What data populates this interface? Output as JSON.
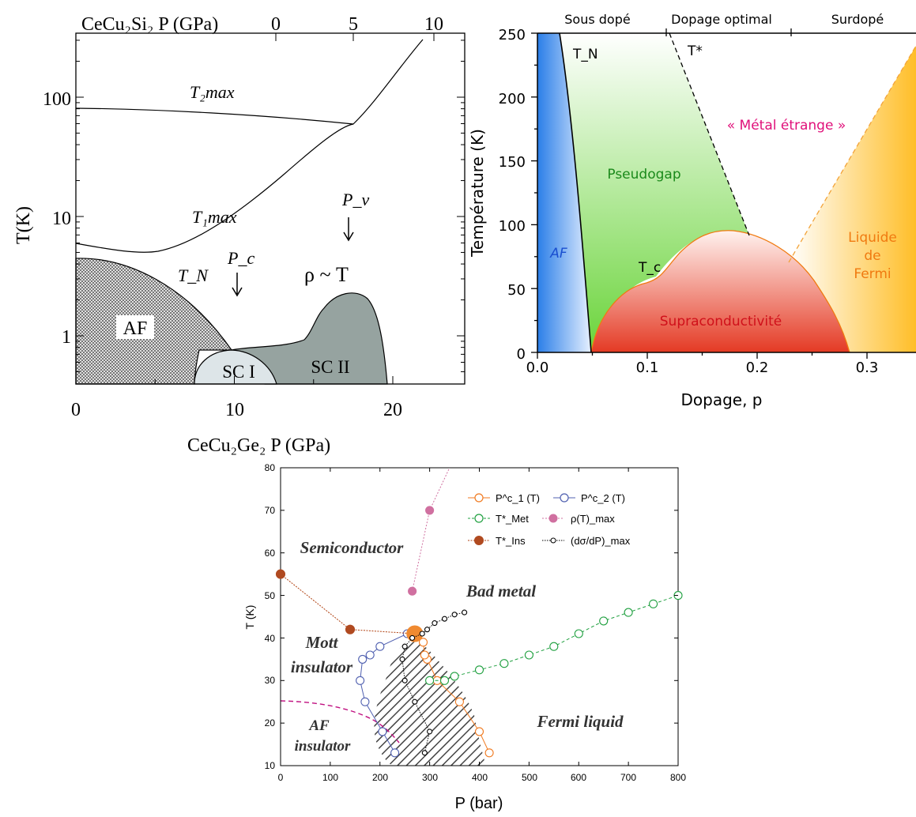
{
  "chart_data": [
    {
      "type": "line",
      "title": "",
      "top_axis_label": "CeCu₂Si₂  P (GPa)",
      "top_ticks": [
        "0",
        "5",
        "10"
      ],
      "xlabel": "CeCu₂Ge₂ P (GPa)",
      "ylabel": "T(K)",
      "x_ticks": [
        "0",
        "10",
        "20"
      ],
      "y_ticks": [
        "1",
        "10",
        "100"
      ],
      "y_scale": "log",
      "xlim": [
        0,
        24.5
      ],
      "ylim": [
        0.4,
        300
      ],
      "series": [
        {
          "name": "T₂max",
          "x": [
            0,
            5,
            10,
            17.2
          ],
          "y": [
            80,
            76,
            70,
            60
          ]
        },
        {
          "name": "T₁max",
          "x": [
            0,
            4,
            6,
            10,
            14,
            17.2,
            20,
            24
          ],
          "y": [
            5.8,
            5,
            5.4,
            10,
            25,
            60,
            120,
            300
          ]
        },
        {
          "name": "T_N",
          "x": [
            0,
            5,
            8,
            10
          ],
          "y": [
            4.5,
            3.5,
            1.8,
            0.8
          ]
        }
      ],
      "annotations": [
        "T₂max",
        "T₁max",
        "T_N",
        "P_c",
        "P_v",
        "ρ ~ T",
        "AF",
        "SC I",
        "SC II"
      ]
    },
    {
      "type": "area",
      "title": "",
      "top_labels": [
        "Sous dopé",
        "Dopage optimal",
        "Surdopé"
      ],
      "xlabel": "Dopage, p",
      "ylabel": "Température (K)",
      "x_ticks": [
        "0.0",
        "0.1",
        "0.2",
        "0.3"
      ],
      "y_ticks": [
        "0",
        "50",
        "100",
        "150",
        "200",
        "250"
      ],
      "xlim": [
        0,
        0.345
      ],
      "ylim": [
        0,
        250
      ],
      "series": [
        {
          "name": "T_N",
          "x": [
            0.019,
            0.03,
            0.04,
            0.05
          ],
          "y": [
            250,
            180,
            90,
            0
          ]
        },
        {
          "name": "T*",
          "x": [
            0.12,
            0.19
          ],
          "y": [
            250,
            90
          ]
        },
        {
          "name": "T_c",
          "x": [
            0.05,
            0.08,
            0.12,
            0.165,
            0.2,
            0.25,
            0.285
          ],
          "y": [
            0,
            40,
            65,
            95,
            88,
            50,
            0
          ]
        }
      ],
      "annotations": [
        "T_N",
        "T*",
        "T_c",
        "« Métal étrange »",
        "Pseudogap",
        "AF",
        "Supraconductivité",
        "Liquide",
        "de",
        "Fermi"
      ]
    },
    {
      "type": "scatter",
      "title": "",
      "xlabel": "P (bar)",
      "ylabel": "T (K)",
      "x_ticks": [
        "0",
        "100",
        "200",
        "300",
        "400",
        "500",
        "600",
        "700",
        "800"
      ],
      "y_ticks": [
        "10",
        "20",
        "30",
        "40",
        "50",
        "60",
        "70",
        "80"
      ],
      "xlim": [
        0,
        800
      ],
      "ylim": [
        10,
        80
      ],
      "series": [
        {
          "name": "P^c_1 (T)",
          "x": [
            420,
            400,
            360,
            315,
            295,
            290,
            287,
            270
          ],
          "y": [
            13,
            18,
            25,
            30,
            35,
            36,
            39,
            41
          ]
        },
        {
          "name": "P^c_2 (T)",
          "x": [
            230,
            205,
            170,
            160,
            165,
            180,
            200,
            255
          ],
          "y": [
            13,
            18,
            25,
            30,
            35,
            36,
            38,
            41
          ]
        },
        {
          "name": "T*_Met",
          "x": [
            300,
            330,
            350,
            400,
            450,
            500,
            550,
            600,
            650,
            700,
            750,
            800
          ],
          "y": [
            30,
            30,
            31,
            32.5,
            34,
            36,
            38,
            41,
            44,
            46,
            48,
            50
          ]
        },
        {
          "name": "ρ(T)_max",
          "x": [
            265,
            300
          ],
          "y": [
            51,
            70
          ]
        },
        {
          "name": "T*_Ins",
          "x": [
            0,
            140,
            270
          ],
          "y": [
            55,
            42,
            41
          ]
        },
        {
          "name": "(dσ/dP)_max",
          "x": [
            290,
            300,
            270,
            250,
            245,
            250,
            265,
            285,
            295,
            310,
            330,
            350,
            370
          ],
          "y": [
            13,
            18,
            25,
            30,
            35,
            38,
            40,
            41,
            42,
            43.5,
            44.5,
            45.5,
            46
          ]
        }
      ],
      "legend": [
        "P^c_1 (T)",
        "P^c_2 (T)",
        "T*_Met",
        "ρ(T)_max",
        "T*_Ins",
        "(dσ/dP)_max"
      ],
      "legend_position": "top-right",
      "annotations": [
        "Semiconductor",
        "Bad metal",
        "Mott",
        "insulator",
        "AF",
        "insulator",
        "Fermi liquid"
      ]
    }
  ]
}
